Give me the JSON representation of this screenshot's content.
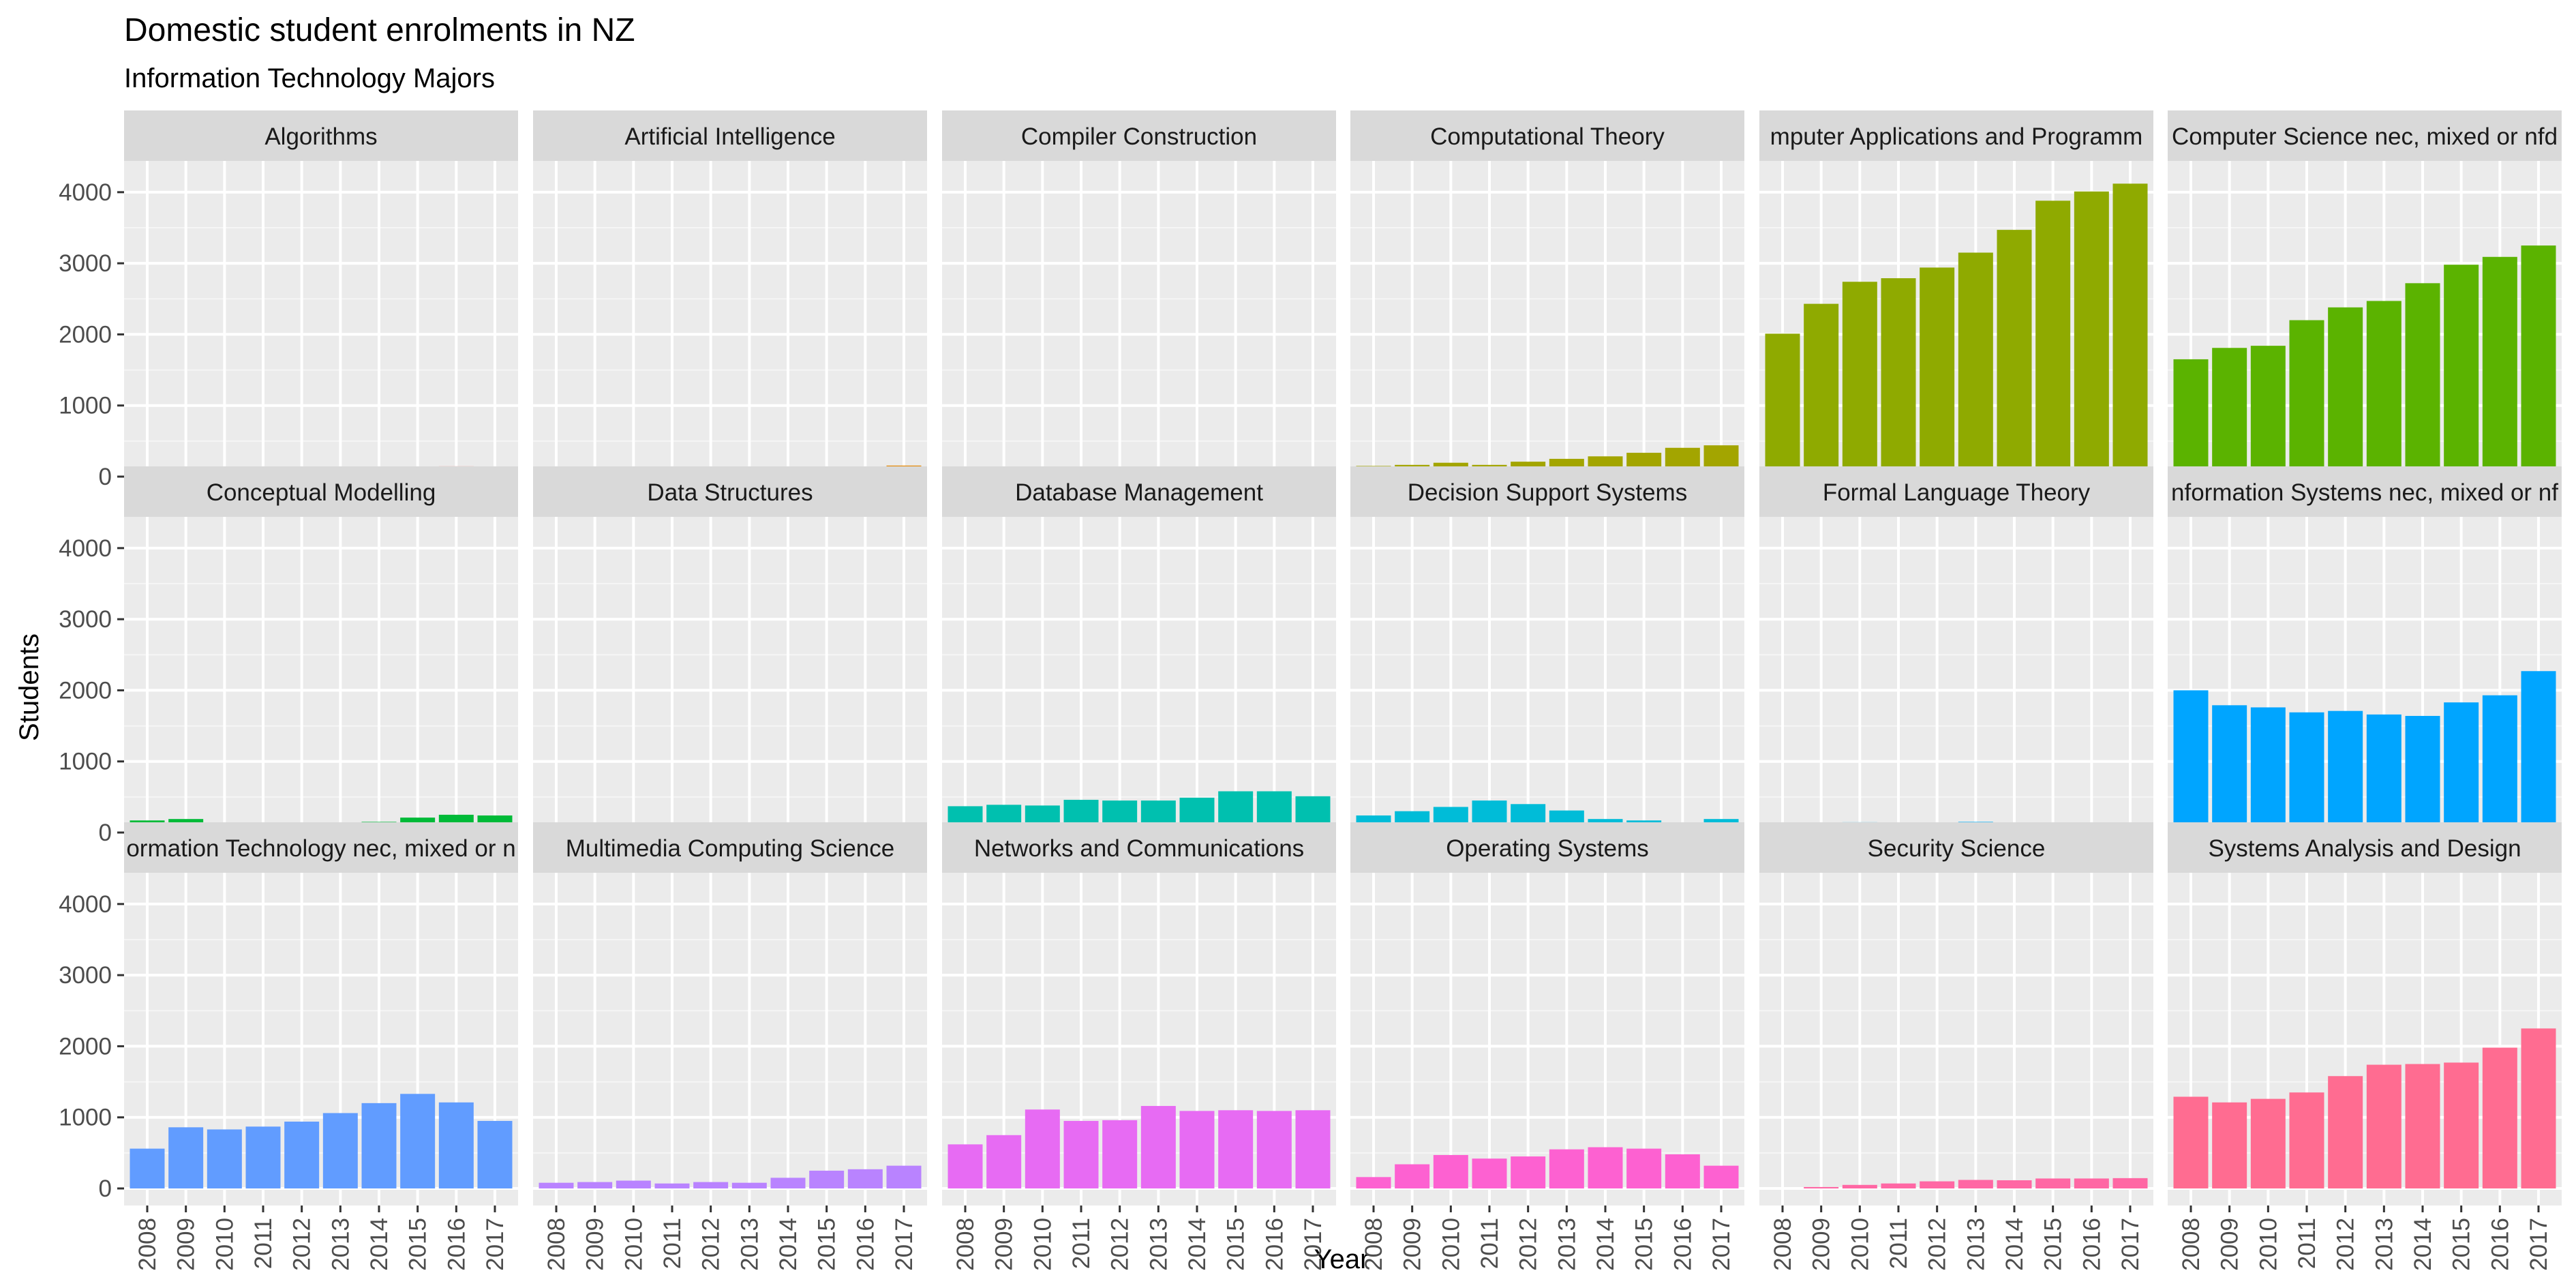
{
  "chart_data": {
    "type": "bar",
    "title": "Domestic student enrolments in NZ",
    "subtitle": "Information Technology Majors",
    "xlabel": "Year",
    "ylabel": "Students",
    "ylim": [
      0,
      4200
    ],
    "yticks": [
      0,
      1000,
      2000,
      3000,
      4000
    ],
    "grid": true,
    "legend": "none",
    "categories": [
      "2008",
      "2009",
      "2010",
      "2011",
      "2012",
      "2013",
      "2014",
      "2015",
      "2016",
      "2017"
    ],
    "facets": [
      {
        "name": "Algorithms",
        "label": "Algorithms",
        "color": "#F8766D",
        "values": [
          55,
          50,
          55,
          60,
          75,
          85,
          95,
          105,
          145,
          140
        ]
      },
      {
        "name": "Artificial Intelligence",
        "label": "Artificial Intelligence",
        "color": "#E58700",
        "values": [
          25,
          30,
          45,
          55,
          65,
          85,
          85,
          105,
          120,
          155
        ]
      },
      {
        "name": "Compiler Construction",
        "label": "Compiler Construction",
        "color": "#C99800",
        "values": [
          10,
          15,
          10,
          5,
          0,
          0,
          0,
          0,
          10,
          0
        ]
      },
      {
        "name": "Computational Theory",
        "label": "Computational Theory",
        "color": "#A3A500",
        "values": [
          150,
          165,
          195,
          165,
          210,
          250,
          285,
          335,
          405,
          440
        ]
      },
      {
        "name": "Computer Applications and Programming",
        "label": "mputer Applications and Programm",
        "color": "#8FAA00",
        "values": [
          2010,
          2430,
          2740,
          2790,
          2940,
          3150,
          3470,
          3880,
          4010,
          4120
        ]
      },
      {
        "name": "Computer Science nec, mixed or nfd",
        "label": "Computer Science nec, mixed or nfd",
        "color": "#5BB300",
        "values": [
          1650,
          1810,
          1840,
          2200,
          2380,
          2470,
          2720,
          2980,
          3090,
          3250
        ]
      },
      {
        "name": "Conceptual Modelling",
        "label": "Conceptual Modelling",
        "color": "#00BA38",
        "values": [
          170,
          190,
          130,
          100,
          110,
          100,
          150,
          210,
          250,
          240
        ]
      },
      {
        "name": "Data Structures",
        "label": "Data Structures",
        "color": "#00BF7D",
        "values": [
          130,
          110,
          90,
          70,
          80,
          75,
          100,
          115,
          125,
          135
        ]
      },
      {
        "name": "Database Management",
        "label": "Database Management",
        "color": "#00C0AF",
        "values": [
          370,
          390,
          380,
          460,
          450,
          450,
          490,
          580,
          580,
          510
        ]
      },
      {
        "name": "Decision Support Systems",
        "label": "Decision Support Systems",
        "color": "#00BCD8",
        "values": [
          240,
          300,
          360,
          450,
          400,
          310,
          190,
          170,
          120,
          190
        ]
      },
      {
        "name": "Formal Language Theory",
        "label": "Formal Language Theory",
        "color": "#00B0F6",
        "values": [
          120,
          140,
          145,
          135,
          135,
          150,
          135,
          100,
          90,
          140
        ]
      },
      {
        "name": "Information Systems nec, mixed or nfd",
        "label": "nformation Systems nec, mixed or nf",
        "color": "#00A5FF",
        "values": [
          2000,
          1790,
          1760,
          1690,
          1710,
          1660,
          1640,
          1830,
          1930,
          2270
        ]
      },
      {
        "name": "Information Technology nec, mixed or nfd",
        "label": "ormation Technology nec, mixed or n",
        "color": "#619CFF",
        "values": [
          560,
          860,
          830,
          870,
          940,
          1060,
          1200,
          1330,
          1210,
          950
        ]
      },
      {
        "name": "Multimedia Computing Science",
        "label": "Multimedia Computing Science",
        "color": "#B983FF",
        "values": [
          80,
          90,
          110,
          70,
          90,
          80,
          150,
          250,
          270,
          320
        ]
      },
      {
        "name": "Networks and Communications",
        "label": "Networks and Communications",
        "color": "#E76BF3",
        "values": [
          620,
          750,
          1110,
          950,
          960,
          1160,
          1090,
          1100,
          1090,
          1100
        ]
      },
      {
        "name": "Operating Systems",
        "label": "Operating Systems",
        "color": "#FD61D1",
        "values": [
          160,
          340,
          470,
          420,
          450,
          550,
          580,
          560,
          480,
          320
        ]
      },
      {
        "name": "Security Science",
        "label": "Security Science",
        "color": "#FF67A4",
        "values": [
          0,
          20,
          50,
          70,
          100,
          120,
          115,
          140,
          140,
          145
        ]
      },
      {
        "name": "Systems Analysis and Design",
        "label": "Systems Analysis and Design",
        "color": "#FF6C91",
        "values": [
          1290,
          1210,
          1260,
          1350,
          1580,
          1740,
          1750,
          1770,
          1980,
          2250
        ]
      }
    ]
  }
}
